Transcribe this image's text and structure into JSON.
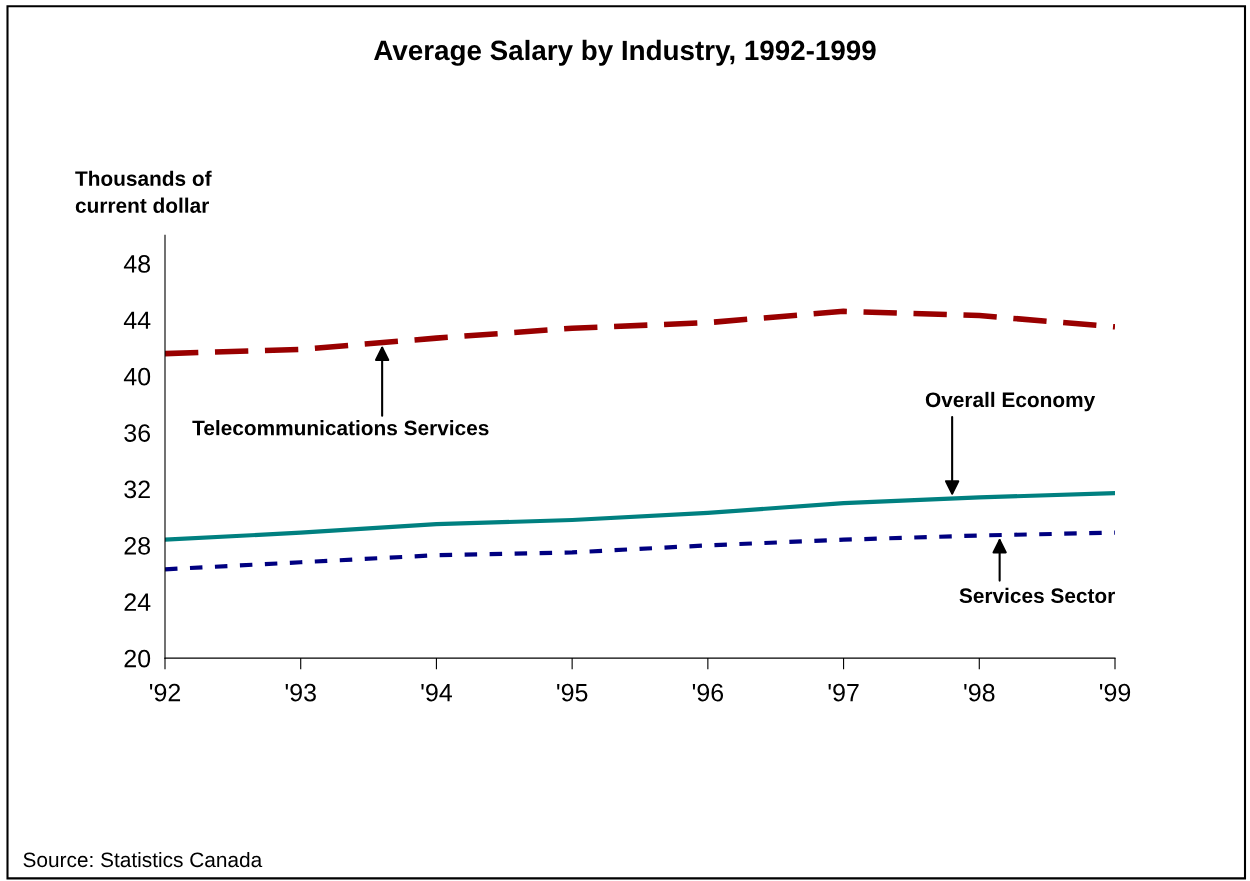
{
  "chart_data": {
    "type": "line",
    "title": "Average Salary by Industry, 1992-1999",
    "ylabel": "Thousands of\ncurrent dollar",
    "categories": [
      "'92",
      "'93",
      "'94",
      "'95",
      "'96",
      "'97",
      "'98",
      "'99"
    ],
    "series": [
      {
        "name": "Telecommunications Services",
        "color": "#990000",
        "line_style": "dashed",
        "values": [
          41.6,
          41.9,
          42.7,
          43.4,
          43.8,
          44.6,
          44.3,
          43.5
        ]
      },
      {
        "name": "Overall Economy",
        "color": "#008080",
        "line_style": "solid",
        "values": [
          28.4,
          28.9,
          29.5,
          29.8,
          30.3,
          31.0,
          31.4,
          31.7
        ]
      },
      {
        "name": "Services Sector",
        "color": "#000080",
        "line_style": "dotted",
        "values": [
          26.3,
          26.8,
          27.3,
          27.5,
          28.0,
          28.4,
          28.7,
          28.9
        ]
      }
    ],
    "ylim": [
      20,
      50
    ],
    "yticks": [
      20,
      24,
      28,
      32,
      36,
      40,
      44,
      48
    ],
    "grid": false,
    "legend": false,
    "marker": "none",
    "annotations": [
      "Source: Statistics Canada"
    ]
  }
}
